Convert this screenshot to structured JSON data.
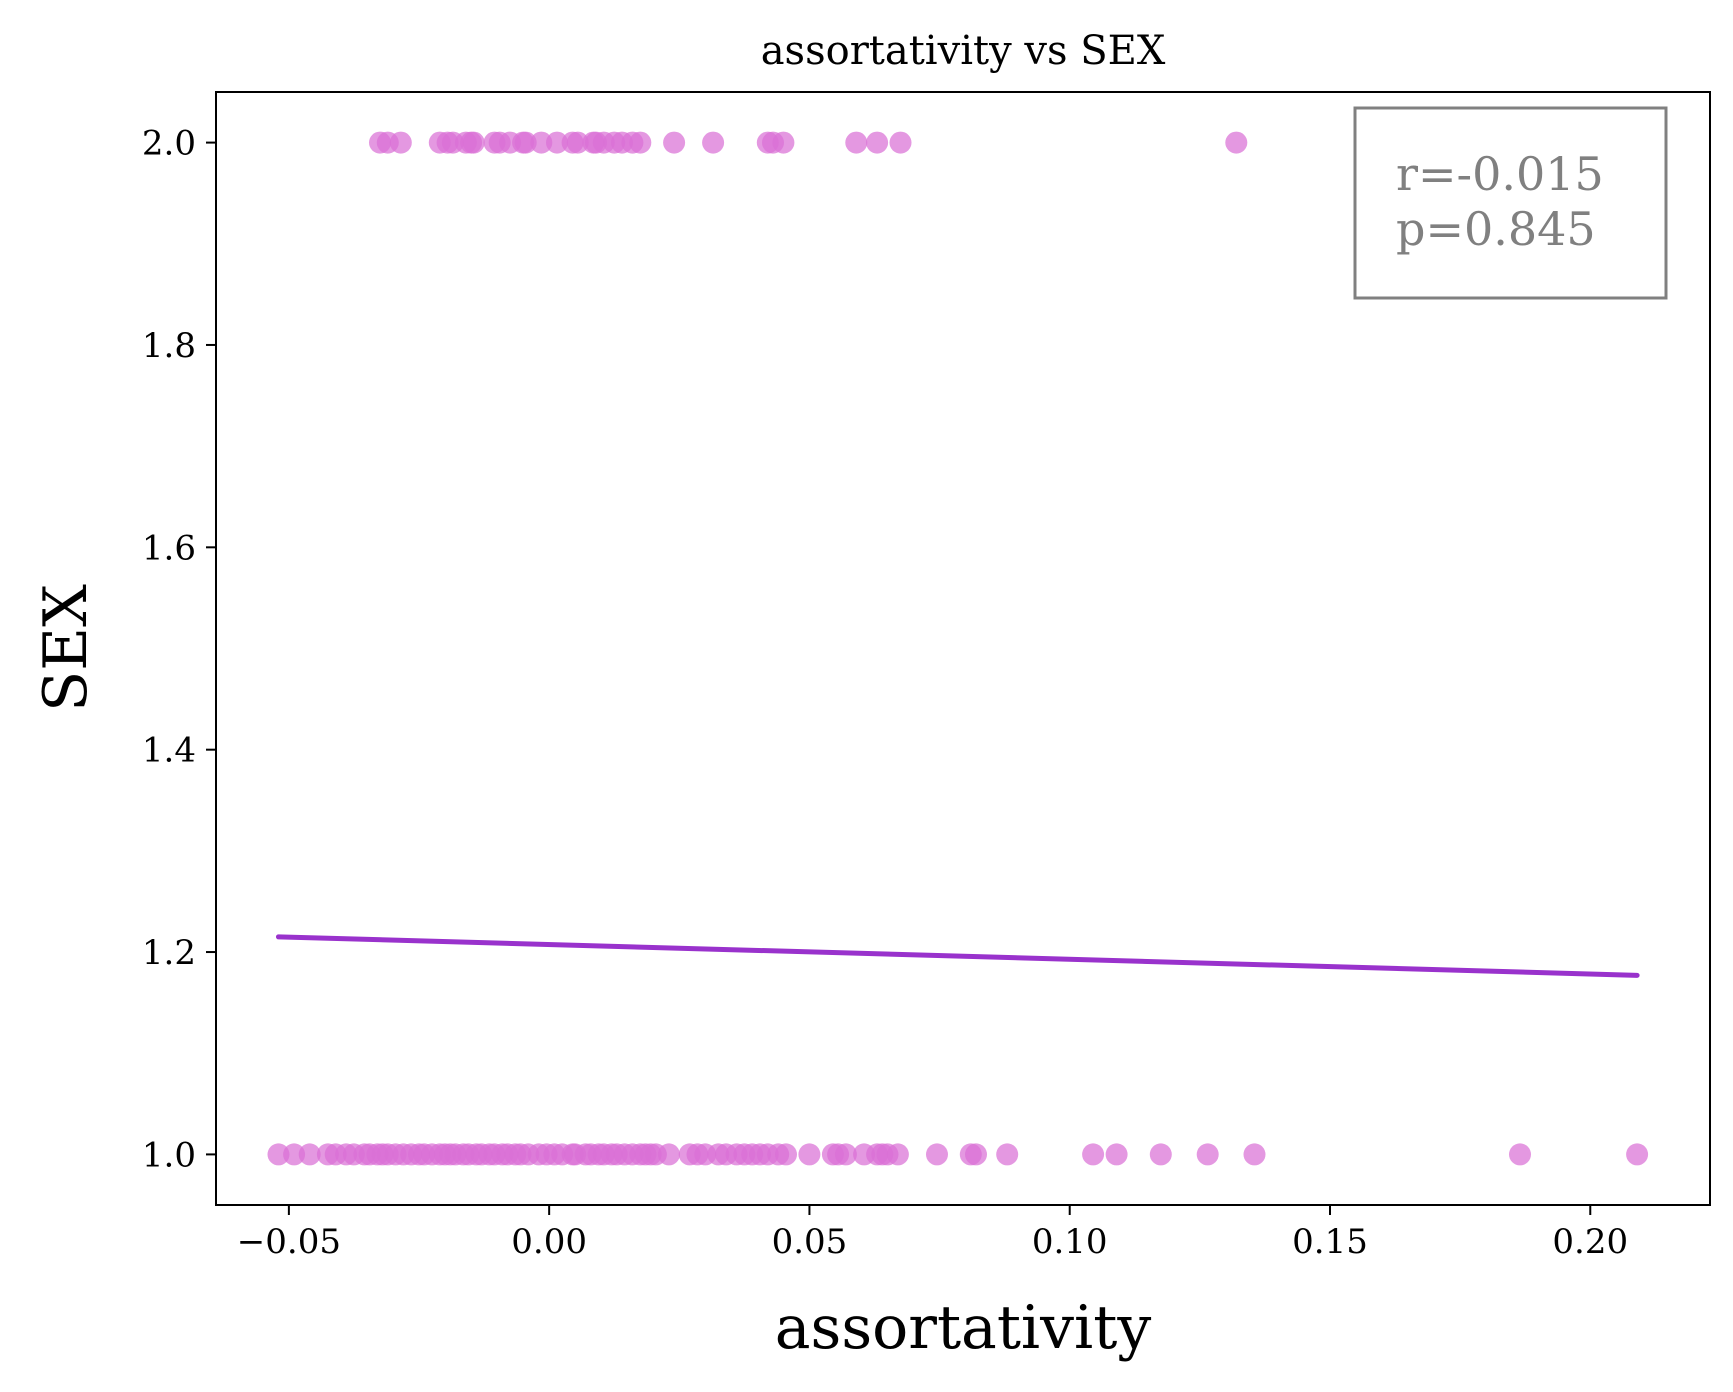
{
  "chart_data": {
    "type": "scatter",
    "title": "assortativity vs SEX",
    "xlabel": "assortativity",
    "ylabel": "SEX",
    "xlim": [
      -0.064,
      0.223
    ],
    "ylim": [
      0.95,
      2.05
    ],
    "xticks": [
      -0.05,
      0.0,
      0.05,
      0.1,
      0.15,
      0.2
    ],
    "xtick_labels": [
      "−0.05",
      "0.00",
      "0.05",
      "0.10",
      "0.15",
      "0.20"
    ],
    "yticks": [
      1.0,
      1.2,
      1.4,
      1.6,
      1.8,
      2.0
    ],
    "ytick_labels": [
      "1.0",
      "1.2",
      "1.4",
      "1.6",
      "1.8",
      "2.0"
    ],
    "grid": false,
    "point_color": "#da70d6",
    "line_color": "#9932cc",
    "series": [
      {
        "y": 2.0,
        "x": [
          -0.0325,
          -0.031,
          -0.0285,
          -0.021,
          -0.0195,
          -0.0185,
          -0.016,
          -0.015,
          -0.0145,
          -0.0105,
          -0.0095,
          -0.0075,
          -0.005,
          -0.0045,
          -0.0015,
          0.0015,
          0.0045,
          0.0055,
          0.0085,
          0.009,
          0.0105,
          0.0125,
          0.014,
          0.016,
          0.0175,
          0.024,
          0.0315,
          0.042,
          0.043,
          0.045,
          0.059,
          0.063,
          0.0675,
          0.132
        ]
      },
      {
        "y": 1.0,
        "x": [
          -0.052,
          -0.049,
          -0.046,
          -0.0425,
          -0.041,
          -0.039,
          -0.0375,
          -0.0355,
          -0.0345,
          -0.033,
          -0.032,
          -0.031,
          -0.0295,
          -0.028,
          -0.0265,
          -0.025,
          -0.024,
          -0.0225,
          -0.021,
          -0.02,
          -0.019,
          -0.018,
          -0.0165,
          -0.0155,
          -0.014,
          -0.013,
          -0.0115,
          -0.0105,
          -0.009,
          -0.008,
          -0.0065,
          -0.0055,
          -0.004,
          -0.002,
          -0.0005,
          0.001,
          0.0025,
          0.0045,
          0.005,
          0.007,
          0.008,
          0.0095,
          0.0105,
          0.012,
          0.013,
          0.0145,
          0.016,
          0.0175,
          0.0185,
          0.0195,
          0.0205,
          0.023,
          0.027,
          0.0285,
          0.03,
          0.0325,
          0.034,
          0.036,
          0.0375,
          0.039,
          0.0405,
          0.042,
          0.044,
          0.0455,
          0.05,
          0.0545,
          0.0555,
          0.057,
          0.0605,
          0.063,
          0.064,
          0.065,
          0.067,
          0.0745,
          0.081,
          0.082,
          0.088,
          0.1045,
          0.109,
          0.1175,
          0.1265,
          0.1355,
          0.1865,
          0.209
        ]
      }
    ],
    "fit_line": {
      "x": [
        -0.052,
        0.209
      ],
      "y": [
        1.215,
        1.177
      ]
    },
    "stats": {
      "r_text": "r=-0.015",
      "p_text": "p=0.845"
    }
  }
}
